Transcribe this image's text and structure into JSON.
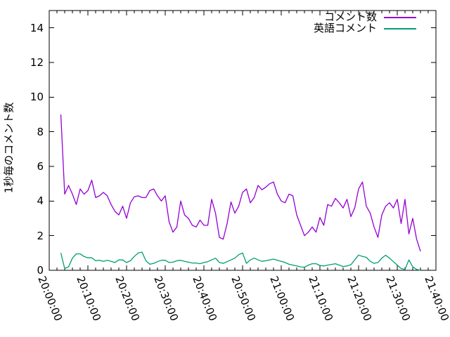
{
  "window": {
    "background": "#ffffff",
    "border_color": "#000000"
  },
  "chart_data": {
    "type": "line",
    "title": "",
    "xlabel": "",
    "ylabel": "1秒毎のコメント数",
    "grid": false,
    "legend_position": "top-right-inside",
    "x_axis": {
      "tick_labels": [
        "20:00:00",
        "20:10:00",
        "20:20:00",
        "20:30:00",
        "20:40:00",
        "20:50:00",
        "21:00:00",
        "21:10:00",
        "21:20:00",
        "21:30:00",
        "21:40:00"
      ],
      "tick_minutes": [
        0,
        10,
        20,
        30,
        40,
        50,
        60,
        70,
        80,
        90,
        100
      ],
      "minor_tick_step_minutes": 2,
      "range_minutes": [
        0,
        100
      ],
      "labels_rotated_deg": 68
    },
    "y_axis": {
      "tick_labels": [
        "0",
        "2",
        "4",
        "6",
        "8",
        "10",
        "12",
        "14"
      ],
      "tick_values": [
        0,
        2,
        4,
        6,
        8,
        10,
        12,
        14
      ],
      "range": [
        0,
        15
      ]
    },
    "x_minutes": [
      3,
      4,
      5,
      6,
      7,
      8,
      9,
      10,
      11,
      12,
      13,
      14,
      15,
      16,
      17,
      18,
      19,
      20,
      21,
      22,
      23,
      24,
      25,
      26,
      27,
      28,
      29,
      30,
      31,
      32,
      33,
      34,
      35,
      36,
      37,
      38,
      39,
      40,
      41,
      42,
      43,
      44,
      45,
      46,
      47,
      48,
      49,
      50,
      51,
      52,
      53,
      54,
      55,
      56,
      57,
      58,
      59,
      60,
      61,
      62,
      63,
      64,
      65,
      66,
      67,
      68,
      69,
      70,
      71,
      72,
      73,
      74,
      75,
      76,
      77,
      78,
      79,
      80,
      81,
      82,
      83,
      84,
      85,
      86,
      87,
      88,
      89,
      90,
      91,
      92,
      93,
      94,
      95,
      96
    ],
    "series": [
      {
        "name": "コメント数",
        "color": "#9400d3",
        "values": [
          9.0,
          4.4,
          4.9,
          4.4,
          3.8,
          4.7,
          4.4,
          4.6,
          5.2,
          4.2,
          4.3,
          4.5,
          4.3,
          3.8,
          3.4,
          3.2,
          3.7,
          3.0,
          3.9,
          4.25,
          4.3,
          4.2,
          4.2,
          4.6,
          4.7,
          4.3,
          4.0,
          4.3,
          2.8,
          2.2,
          2.5,
          4.0,
          3.2,
          3.0,
          2.6,
          2.5,
          2.9,
          2.6,
          2.6,
          4.1,
          3.3,
          1.9,
          1.8,
          2.7,
          3.95,
          3.3,
          3.7,
          4.5,
          4.7,
          3.9,
          4.2,
          4.9,
          4.65,
          4.8,
          5.0,
          5.1,
          4.4,
          4.0,
          3.9,
          4.4,
          4.3,
          3.2,
          2.6,
          2.0,
          2.2,
          2.5,
          2.2,
          3.05,
          2.6,
          3.8,
          3.7,
          4.15,
          3.9,
          3.6,
          4.1,
          3.1,
          3.6,
          4.7,
          5.1,
          3.7,
          3.3,
          2.5,
          1.9,
          3.2,
          3.7,
          3.9,
          3.6,
          4.1,
          2.7,
          4.1,
          2.1,
          3.0,
          1.8,
          1.1
        ]
      },
      {
        "name": "英語コメント",
        "color": "#009e73",
        "values": [
          1.0,
          0.1,
          0.2,
          0.7,
          0.95,
          0.95,
          0.8,
          0.72,
          0.72,
          0.55,
          0.58,
          0.52,
          0.58,
          0.52,
          0.45,
          0.6,
          0.6,
          0.45,
          0.55,
          0.8,
          1.0,
          1.05,
          0.55,
          0.35,
          0.4,
          0.5,
          0.58,
          0.58,
          0.45,
          0.47,
          0.55,
          0.58,
          0.52,
          0.47,
          0.42,
          0.42,
          0.38,
          0.45,
          0.5,
          0.6,
          0.7,
          0.45,
          0.4,
          0.5,
          0.6,
          0.7,
          0.9,
          1.0,
          0.4,
          0.6,
          0.7,
          0.6,
          0.52,
          0.55,
          0.6,
          0.65,
          0.58,
          0.52,
          0.45,
          0.35,
          0.3,
          0.25,
          0.2,
          0.18,
          0.3,
          0.38,
          0.38,
          0.28,
          0.25,
          0.3,
          0.34,
          0.38,
          0.3,
          0.22,
          0.25,
          0.32,
          0.6,
          0.88,
          0.8,
          0.75,
          0.52,
          0.4,
          0.45,
          0.7,
          0.87,
          0.7,
          0.5,
          0.3,
          0.1,
          0.05,
          0.6,
          0.2,
          0.05,
          0.0
        ]
      }
    ]
  }
}
